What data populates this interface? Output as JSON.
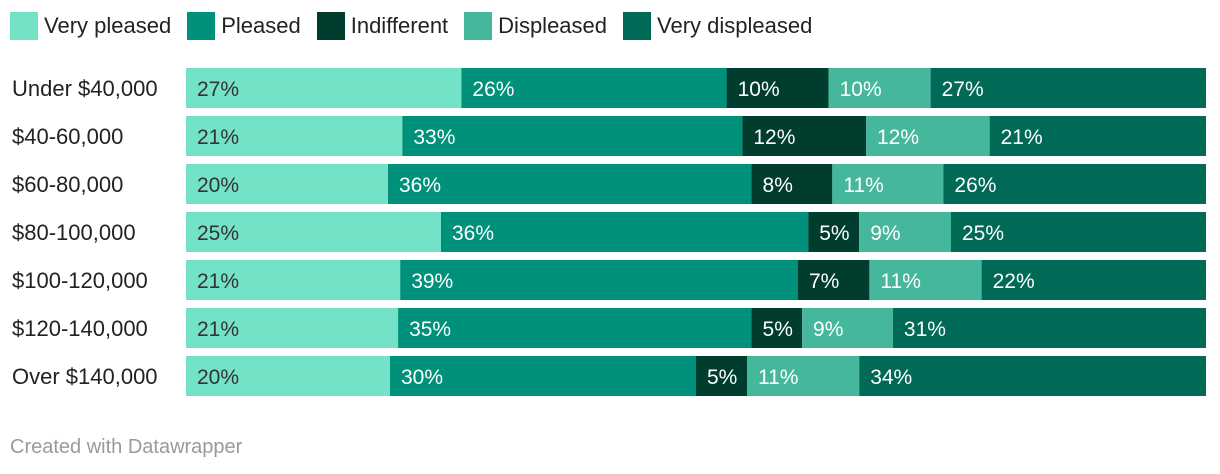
{
  "legend": [
    {
      "label": "Very pleased",
      "color": "#73E2C7"
    },
    {
      "label": "Pleased",
      "color": "#00917A"
    },
    {
      "label": "Indifferent",
      "color": "#003D2E"
    },
    {
      "label": "Displeased",
      "color": "#45B79C"
    },
    {
      "label": "Very displeased",
      "color": "#006A57"
    }
  ],
  "chart_data": {
    "type": "bar",
    "orientation": "horizontal",
    "stacked": true,
    "categories": [
      "Under $40,000",
      "$40-60,000",
      "$60-80,000",
      "$80-100,000",
      "$100-120,000",
      "$120-140,000",
      "Over $140,000"
    ],
    "series": [
      {
        "name": "Very pleased",
        "values": [
          27,
          21,
          20,
          25,
          21,
          21,
          20
        ]
      },
      {
        "name": "Pleased",
        "values": [
          26,
          33,
          36,
          36,
          39,
          35,
          30
        ]
      },
      {
        "name": "Indifferent",
        "values": [
          10,
          12,
          8,
          5,
          7,
          5,
          5
        ]
      },
      {
        "name": "Displeased",
        "values": [
          10,
          12,
          11,
          9,
          11,
          9,
          11
        ]
      },
      {
        "name": "Very displeased",
        "values": [
          27,
          21,
          26,
          25,
          22,
          31,
          34
        ]
      }
    ],
    "value_suffix": "%",
    "label_colors": [
      "#333333",
      "#ffffff",
      "#ffffff",
      "#ffffff",
      "#ffffff"
    ]
  },
  "footer": "Created with Datawrapper"
}
